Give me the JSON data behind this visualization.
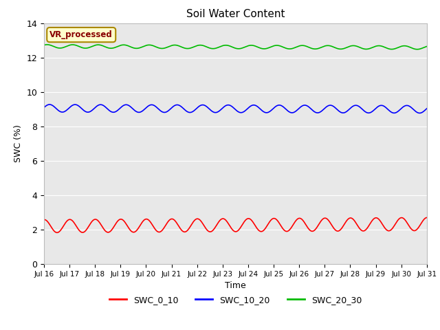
{
  "title": "Soil Water Content",
  "xlabel": "Time",
  "ylabel": "SWC (%)",
  "ylim": [
    0,
    14
  ],
  "yticks": [
    0,
    2,
    4,
    6,
    8,
    10,
    12,
    14
  ],
  "n_days": 15,
  "points_per_day": 96,
  "series": [
    {
      "name": "SWC_0_10",
      "color": "#ff0000",
      "mean": 2.2,
      "amplitude": 0.38,
      "freq_per_day": 1.0,
      "phase": 1.5,
      "trend": 0.008
    },
    {
      "name": "SWC_10_20",
      "color": "#0000ff",
      "mean": 9.05,
      "amplitude": 0.22,
      "freq_per_day": 1.0,
      "phase": 0.2,
      "trend": -0.004
    },
    {
      "name": "SWC_20_30",
      "color": "#00bb00",
      "mean": 12.65,
      "amplitude": 0.1,
      "freq_per_day": 1.0,
      "phase": 0.8,
      "trend": -0.005
    }
  ],
  "xtick_labels": [
    "Jul 16",
    "Jul 17",
    "Jul 18",
    "Jul 19",
    "Jul 20",
    "Jul 21",
    "Jul 22",
    "Jul 23",
    "Jul 24",
    "Jul 25",
    "Jul 26",
    "Jul 27",
    "Jul 28",
    "Jul 29",
    "Jul 30",
    "Jul 31"
  ],
  "annotation_text": "VR_processed",
  "annotation_facecolor": "#ffffcc",
  "annotation_edgecolor": "#aa8800",
  "annotation_textcolor": "#880000",
  "bg_color": "#e8e8e8",
  "fig_color": "#ffffff",
  "grid_color": "#ffffff",
  "linewidth": 1.2
}
